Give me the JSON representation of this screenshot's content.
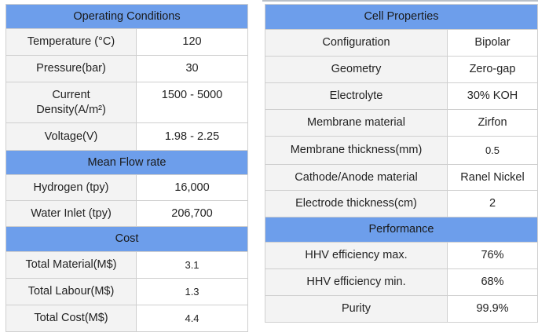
{
  "left_table": {
    "sections": [
      {
        "title": "Operating Conditions",
        "rows": [
          {
            "label": "Temperature (°C)",
            "value": "120"
          },
          {
            "label": "Pressure(bar)",
            "value": "30"
          },
          {
            "label": "Current Density(A/m²)",
            "value": "1500 - 5000"
          },
          {
            "label": "Voltage(V)",
            "value": "1.98 - 2.25"
          }
        ]
      },
      {
        "title": "Mean Flow rate",
        "rows": [
          {
            "label": "Hydrogen (tpy)",
            "value": "16,000"
          },
          {
            "label": "Water Inlet (tpy)",
            "value": "206,700"
          }
        ]
      },
      {
        "title": "Cost",
        "rows": [
          {
            "label": "Total Material(M$)",
            "value": "3.1"
          },
          {
            "label": "Total Labour(M$)",
            "value": "1.3"
          },
          {
            "label": "Total Cost(M$)",
            "value": "4.4"
          }
        ]
      }
    ]
  },
  "right_table": {
    "sections": [
      {
        "title": "Cell Properties",
        "rows": [
          {
            "label": "Configuration",
            "value": "Bipolar"
          },
          {
            "label": "Geometry",
            "value": "Zero-gap"
          },
          {
            "label": "Electrolyte",
            "value": "30% KOH"
          },
          {
            "label": "Membrane material",
            "value": "Zirfon"
          },
          {
            "label": "Membrane thickness(mm)",
            "value": "0.5"
          },
          {
            "label": "Cathode/Anode material",
            "value": "Ranel Nickel"
          },
          {
            "label": "Electrode thickness(cm)",
            "value": "2"
          }
        ]
      },
      {
        "title": "Performance",
        "rows": [
          {
            "label": "HHV efficiency max.",
            "value": "76%"
          },
          {
            "label": "HHV efficiency min.",
            "value": "68%"
          },
          {
            "label": "Purity",
            "value": "99.9%"
          }
        ]
      }
    ]
  },
  "colors": {
    "header_bg": "#6d9eeb",
    "label_bg": "#f3f3f3",
    "value_bg": "#ffffff",
    "border": "#cfcfcf"
  }
}
